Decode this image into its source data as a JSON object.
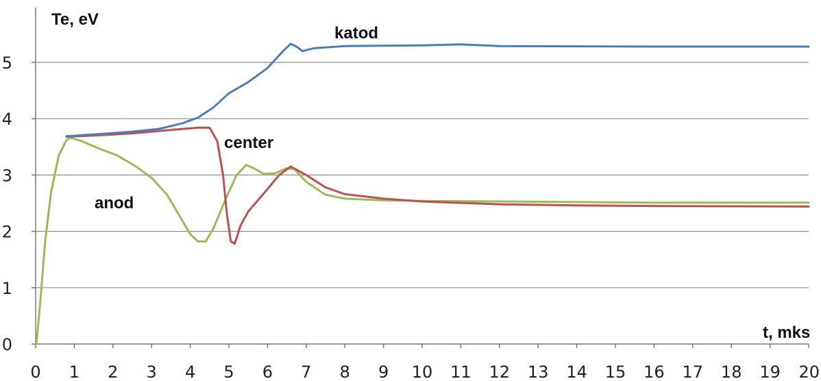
{
  "chart_data": {
    "type": "line",
    "ylabel": "Te, eV",
    "xlabel": "t, mks",
    "xlim": [
      0,
      20
    ],
    "ylim": [
      0,
      5.6
    ],
    "x_ticks": [
      "0",
      "1",
      "2",
      "3",
      "4",
      "5",
      "6",
      "7",
      "8",
      "9",
      "10",
      "11",
      "12",
      "13",
      "14",
      "15",
      "16",
      "17",
      "18",
      "19",
      "20"
    ],
    "y_ticks": [
      "0",
      "1",
      "2",
      "3",
      "4",
      "5"
    ],
    "grid": "horizontal",
    "legend": "none",
    "series": [
      {
        "name": "katod",
        "color": "#4a7ebb",
        "points": [
          [
            0.8,
            3.69
          ],
          [
            1.5,
            3.72
          ],
          [
            2.5,
            3.77
          ],
          [
            3.2,
            3.82
          ],
          [
            3.8,
            3.92
          ],
          [
            4.2,
            4.02
          ],
          [
            4.6,
            4.2
          ],
          [
            5.0,
            4.45
          ],
          [
            5.5,
            4.65
          ],
          [
            6.0,
            4.9
          ],
          [
            6.4,
            5.2
          ],
          [
            6.6,
            5.33
          ],
          [
            6.75,
            5.28
          ],
          [
            6.9,
            5.2
          ],
          [
            7.2,
            5.25
          ],
          [
            8,
            5.29
          ],
          [
            10,
            5.3
          ],
          [
            11,
            5.32
          ],
          [
            12,
            5.29
          ],
          [
            16,
            5.28
          ],
          [
            20,
            5.28
          ]
        ]
      },
      {
        "name": "center",
        "color": "#c0504d",
        "points": [
          [
            0.8,
            3.68
          ],
          [
            1.5,
            3.7
          ],
          [
            2.5,
            3.74
          ],
          [
            3.5,
            3.8
          ],
          [
            4.2,
            3.84
          ],
          [
            4.5,
            3.84
          ],
          [
            4.7,
            3.6
          ],
          [
            4.85,
            3.0
          ],
          [
            4.95,
            2.3
          ],
          [
            5.05,
            1.82
          ],
          [
            5.15,
            1.78
          ],
          [
            5.3,
            2.1
          ],
          [
            5.5,
            2.35
          ],
          [
            6.0,
            2.75
          ],
          [
            6.3,
            3.0
          ],
          [
            6.6,
            3.15
          ],
          [
            7.0,
            3.0
          ],
          [
            7.5,
            2.78
          ],
          [
            8,
            2.66
          ],
          [
            9,
            2.58
          ],
          [
            10,
            2.53
          ],
          [
            12,
            2.48
          ],
          [
            14,
            2.46
          ],
          [
            16,
            2.45
          ],
          [
            20,
            2.44
          ]
        ]
      },
      {
        "name": "anod",
        "color": "#9bbb59",
        "points": [
          [
            0.02,
            0.0
          ],
          [
            0.12,
            0.75
          ],
          [
            0.25,
            1.85
          ],
          [
            0.4,
            2.7
          ],
          [
            0.6,
            3.35
          ],
          [
            0.8,
            3.62
          ],
          [
            0.9,
            3.66
          ],
          [
            1.2,
            3.6
          ],
          [
            1.6,
            3.48
          ],
          [
            2.1,
            3.35
          ],
          [
            2.6,
            3.15
          ],
          [
            3.0,
            2.95
          ],
          [
            3.4,
            2.65
          ],
          [
            3.7,
            2.3
          ],
          [
            4.0,
            1.95
          ],
          [
            4.2,
            1.82
          ],
          [
            4.4,
            1.82
          ],
          [
            4.6,
            2.05
          ],
          [
            4.9,
            2.55
          ],
          [
            5.2,
            3.0
          ],
          [
            5.45,
            3.18
          ],
          [
            5.7,
            3.1
          ],
          [
            5.9,
            3.02
          ],
          [
            6.2,
            3.03
          ],
          [
            6.5,
            3.12
          ],
          [
            6.7,
            3.1
          ],
          [
            7.0,
            2.88
          ],
          [
            7.5,
            2.65
          ],
          [
            8,
            2.58
          ],
          [
            9,
            2.55
          ],
          [
            10,
            2.54
          ],
          [
            12,
            2.53
          ],
          [
            16,
            2.51
          ],
          [
            20,
            2.51
          ]
        ]
      }
    ],
    "annotations": [
      {
        "text": "katod",
        "series": "katod"
      },
      {
        "text": "center",
        "series": "center"
      },
      {
        "text": "anod",
        "series": "anod"
      }
    ]
  }
}
